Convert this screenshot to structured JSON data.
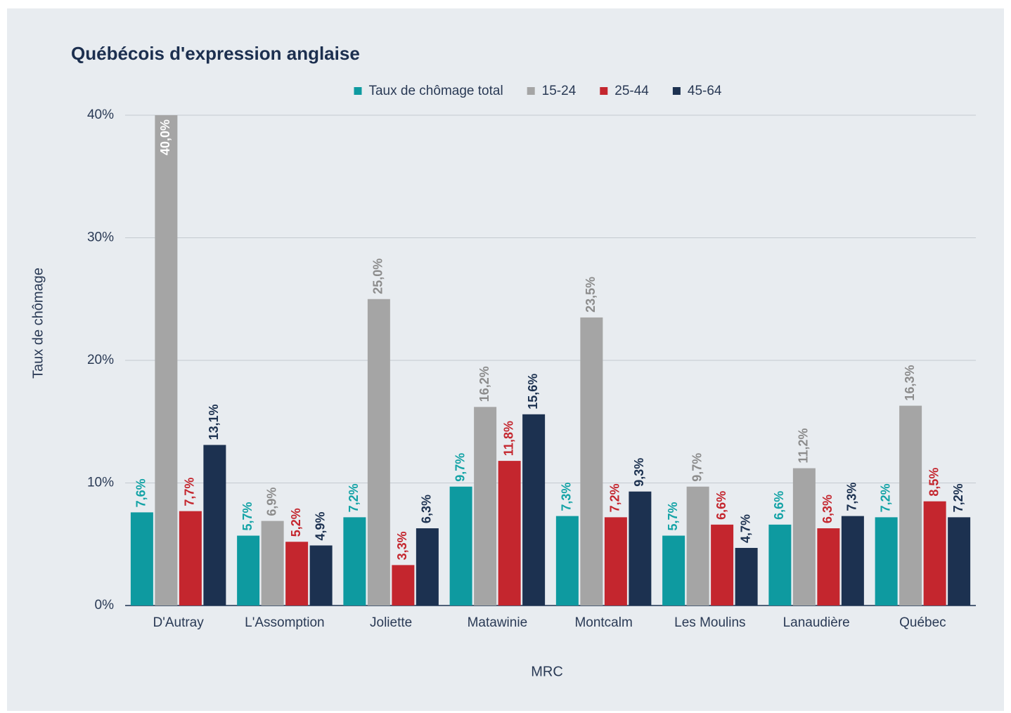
{
  "chart_data": {
    "type": "bar",
    "title": "Québécois d'expression anglaise",
    "xlabel": "MRC",
    "ylabel": "Taux de chômage",
    "categories": [
      "D'Autray",
      "L'Assomption",
      "Joliette",
      "Matawinie",
      "Montcalm",
      "Les Moulins",
      "Lanaudière",
      "Québec"
    ],
    "series": [
      {
        "name": "Taux de chômage total",
        "color": "#0e9aa0",
        "label_color": "#14a3a6",
        "values": [
          7.6,
          5.7,
          7.2,
          9.7,
          7.3,
          5.7,
          6.6,
          7.2
        ],
        "value_labels": [
          "7,6%",
          "5,7%",
          "7,2%",
          "9,7%",
          "7,3%",
          "5,7%",
          "6,6%",
          "7,2%"
        ]
      },
      {
        "name": "15-24",
        "color": "#a5a5a5",
        "label_color": "#8c8c8c",
        "values": [
          40.0,
          6.9,
          25.0,
          16.2,
          23.5,
          9.7,
          11.2,
          16.3
        ],
        "value_labels": [
          "40,0%",
          "6,9%",
          "25,0%",
          "16,2%",
          "23,5%",
          "9,7%",
          "11,2%",
          "16,3%"
        ]
      },
      {
        "name": "25-44",
        "color": "#c4262e",
        "label_color": "#c4262e",
        "values": [
          7.7,
          5.2,
          3.3,
          11.8,
          7.2,
          6.6,
          6.3,
          8.5
        ],
        "value_labels": [
          "7,7%",
          "5,2%",
          "3,3%",
          "11,8%",
          "7,2%",
          "6,6%",
          "6,3%",
          "8,5%"
        ]
      },
      {
        "name": "45-64",
        "color": "#1c3150",
        "label_color": "#1c3150",
        "values": [
          13.1,
          4.9,
          6.3,
          15.6,
          9.3,
          4.7,
          7.3,
          7.2
        ],
        "value_labels": [
          "13,1%",
          "4,9%",
          "6,3%",
          "15,6%",
          "9,3%",
          "4,7%",
          "7,3%",
          "7,2%"
        ]
      }
    ],
    "ylim": [
      0,
      40
    ],
    "yticks": [
      {
        "value": 0,
        "label": "0%"
      },
      {
        "value": 10,
        "label": "10%"
      },
      {
        "value": 20,
        "label": "20%"
      },
      {
        "value": 30,
        "label": "30%"
      },
      {
        "value": 40,
        "label": "40%"
      }
    ],
    "grid": true,
    "legend": "top"
  }
}
